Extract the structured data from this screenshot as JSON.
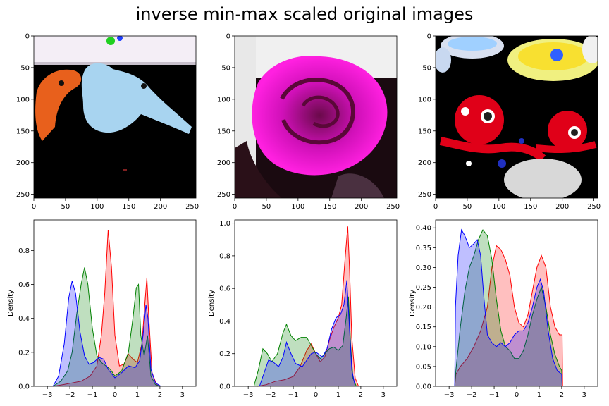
{
  "figure": {
    "title": "inverse min-max scaled original images"
  },
  "colors": {
    "red": "#ff0000",
    "green": "#008000",
    "blue": "#0000ff"
  },
  "chart_data": [
    {
      "type": "image",
      "title": "",
      "description_icon": "plush-toy-photo-icon",
      "xlim": [
        0,
        256
      ],
      "ylim": [
        256,
        0
      ],
      "xticks": [
        0,
        50,
        100,
        150,
        200,
        250
      ],
      "yticks": [
        0,
        50,
        100,
        150,
        200,
        250
      ]
    },
    {
      "type": "image",
      "title": "",
      "description_icon": "rose-photo-icon",
      "xlim": [
        0,
        256
      ],
      "ylim": [
        256,
        0
      ],
      "xticks": [
        0,
        50,
        100,
        150,
        200,
        250
      ],
      "yticks": [
        0,
        50,
        100,
        150,
        200,
        250
      ]
    },
    {
      "type": "image",
      "title": "",
      "description_icon": "octopus-toys-photo-icon",
      "xlim": [
        0,
        256
      ],
      "ylim": [
        256,
        0
      ],
      "xticks": [
        0,
        50,
        100,
        150,
        200,
        250
      ],
      "yticks": [
        0,
        50,
        100,
        150,
        200,
        250
      ]
    },
    {
      "type": "area",
      "ylabel": "Density",
      "xlim": [
        -3.6,
        3.6
      ],
      "ylim": [
        0,
        0.98
      ],
      "xticks": [
        -3,
        -2,
        -1,
        0,
        1,
        2,
        3
      ],
      "yticks": [
        0.0,
        0.2,
        0.4,
        0.6,
        0.8
      ],
      "series": [
        {
          "color": "red",
          "points": [
            [
              -2.75,
              0
            ],
            [
              -2.3,
              0.01
            ],
            [
              -1.9,
              0.02
            ],
            [
              -1.5,
              0.03
            ],
            [
              -1.1,
              0.06
            ],
            [
              -0.8,
              0.12
            ],
            [
              -0.6,
              0.3
            ],
            [
              -0.45,
              0.55
            ],
            [
              -0.3,
              0.92
            ],
            [
              -0.15,
              0.7
            ],
            [
              0.0,
              0.3
            ],
            [
              0.2,
              0.12
            ],
            [
              0.4,
              0.13
            ],
            [
              0.6,
              0.19
            ],
            [
              0.8,
              0.16
            ],
            [
              1.0,
              0.14
            ],
            [
              1.2,
              0.25
            ],
            [
              1.35,
              0.52
            ],
            [
              1.42,
              0.64
            ],
            [
              1.5,
              0.42
            ],
            [
              1.65,
              0.08
            ],
            [
              1.85,
              0.01
            ],
            [
              2.0,
              0
            ]
          ]
        },
        {
          "color": "green",
          "points": [
            [
              -2.75,
              0
            ],
            [
              -2.4,
              0.03
            ],
            [
              -2.1,
              0.09
            ],
            [
              -1.9,
              0.2
            ],
            [
              -1.7,
              0.42
            ],
            [
              -1.5,
              0.6
            ],
            [
              -1.35,
              0.7
            ],
            [
              -1.2,
              0.6
            ],
            [
              -1.0,
              0.34
            ],
            [
              -0.8,
              0.18
            ],
            [
              -0.6,
              0.14
            ],
            [
              -0.4,
              0.12
            ],
            [
              -0.2,
              0.1
            ],
            [
              0.0,
              0.06
            ],
            [
              0.3,
              0.09
            ],
            [
              0.6,
              0.2
            ],
            [
              0.8,
              0.4
            ],
            [
              0.95,
              0.58
            ],
            [
              1.05,
              0.6
            ],
            [
              1.15,
              0.3
            ],
            [
              1.3,
              0.18
            ],
            [
              1.45,
              0.3
            ],
            [
              1.6,
              0.06
            ],
            [
              1.8,
              0.01
            ],
            [
              2.0,
              0
            ]
          ]
        },
        {
          "color": "blue",
          "points": [
            [
              -2.75,
              0
            ],
            [
              -2.5,
              0.06
            ],
            [
              -2.25,
              0.25
            ],
            [
              -2.05,
              0.52
            ],
            [
              -1.9,
              0.62
            ],
            [
              -1.75,
              0.55
            ],
            [
              -1.55,
              0.32
            ],
            [
              -1.35,
              0.18
            ],
            [
              -1.15,
              0.13
            ],
            [
              -0.95,
              0.14
            ],
            [
              -0.7,
              0.17
            ],
            [
              -0.5,
              0.16
            ],
            [
              -0.3,
              0.1
            ],
            [
              0.0,
              0.05
            ],
            [
              0.3,
              0.08
            ],
            [
              0.6,
              0.12
            ],
            [
              0.9,
              0.11
            ],
            [
              1.1,
              0.15
            ],
            [
              1.25,
              0.3
            ],
            [
              1.38,
              0.48
            ],
            [
              1.47,
              0.4
            ],
            [
              1.6,
              0.1
            ],
            [
              1.8,
              0.02
            ],
            [
              2.05,
              0
            ]
          ]
        }
      ]
    },
    {
      "type": "area",
      "ylabel": "Density",
      "xlim": [
        -3.6,
        3.6
      ],
      "ylim": [
        0,
        1.02
      ],
      "xticks": [
        -3,
        -2,
        -1,
        0,
        1,
        2,
        3
      ],
      "yticks": [
        0.0,
        0.2,
        0.4,
        0.6,
        0.8,
        1.0
      ],
      "series": [
        {
          "color": "red",
          "points": [
            [
              -2.6,
              0
            ],
            [
              -2.2,
              0.01
            ],
            [
              -1.8,
              0.03
            ],
            [
              -1.4,
              0.04
            ],
            [
              -1.0,
              0.06
            ],
            [
              -0.7,
              0.12
            ],
            [
              -0.4,
              0.22
            ],
            [
              -0.2,
              0.26
            ],
            [
              0.0,
              0.2
            ],
            [
              0.2,
              0.15
            ],
            [
              0.4,
              0.18
            ],
            [
              0.6,
              0.28
            ],
            [
              0.8,
              0.36
            ],
            [
              1.0,
              0.42
            ],
            [
              1.15,
              0.5
            ],
            [
              1.3,
              0.78
            ],
            [
              1.42,
              0.98
            ],
            [
              1.5,
              0.72
            ],
            [
              1.6,
              0.3
            ],
            [
              1.75,
              0.05
            ],
            [
              1.9,
              0
            ]
          ]
        },
        {
          "color": "green",
          "points": [
            [
              -2.75,
              0
            ],
            [
              -2.55,
              0.1
            ],
            [
              -2.35,
              0.23
            ],
            [
              -2.15,
              0.2
            ],
            [
              -1.95,
              0.15
            ],
            [
              -1.7,
              0.2
            ],
            [
              -1.45,
              0.33
            ],
            [
              -1.3,
              0.38
            ],
            [
              -1.1,
              0.31
            ],
            [
              -0.9,
              0.28
            ],
            [
              -0.65,
              0.3
            ],
            [
              -0.4,
              0.3
            ],
            [
              -0.2,
              0.25
            ],
            [
              0.0,
              0.2
            ],
            [
              0.2,
              0.17
            ],
            [
              0.4,
              0.2
            ],
            [
              0.6,
              0.23
            ],
            [
              0.8,
              0.24
            ],
            [
              1.0,
              0.22
            ],
            [
              1.2,
              0.25
            ],
            [
              1.35,
              0.42
            ],
            [
              1.45,
              0.55
            ],
            [
              1.55,
              0.25
            ],
            [
              1.65,
              0.05
            ],
            [
              1.8,
              0
            ]
          ]
        },
        {
          "color": "blue",
          "points": [
            [
              -2.5,
              0
            ],
            [
              -2.3,
              0.08
            ],
            [
              -2.1,
              0.16
            ],
            [
              -1.9,
              0.15
            ],
            [
              -1.65,
              0.12
            ],
            [
              -1.45,
              0.18
            ],
            [
              -1.3,
              0.27
            ],
            [
              -1.1,
              0.2
            ],
            [
              -0.9,
              0.14
            ],
            [
              -0.6,
              0.12
            ],
            [
              -0.4,
              0.16
            ],
            [
              -0.2,
              0.2
            ],
            [
              0.0,
              0.21
            ],
            [
              0.3,
              0.18
            ],
            [
              0.5,
              0.23
            ],
            [
              0.7,
              0.35
            ],
            [
              0.9,
              0.42
            ],
            [
              1.1,
              0.44
            ],
            [
              1.25,
              0.5
            ],
            [
              1.38,
              0.65
            ],
            [
              1.48,
              0.4
            ],
            [
              1.6,
              0.1
            ],
            [
              1.75,
              0
            ]
          ]
        }
      ]
    },
    {
      "type": "area",
      "ylabel": "Density",
      "xlim": [
        -3.6,
        3.6
      ],
      "ylim": [
        0,
        0.42
      ],
      "xticks": [
        -3,
        -2,
        -1,
        0,
        1,
        2,
        3
      ],
      "yticks": [
        0.0,
        0.05,
        0.1,
        0.15,
        0.2,
        0.25,
        0.3,
        0.35,
        0.4
      ],
      "series": [
        {
          "color": "red",
          "points": [
            [
              -2.75,
              0
            ],
            [
              -2.7,
              0.03
            ],
            [
              -2.5,
              0.05
            ],
            [
              -2.2,
              0.07
            ],
            [
              -1.9,
              0.1
            ],
            [
              -1.6,
              0.14
            ],
            [
              -1.3,
              0.2
            ],
            [
              -1.1,
              0.3
            ],
            [
              -0.9,
              0.355
            ],
            [
              -0.7,
              0.345
            ],
            [
              -0.5,
              0.32
            ],
            [
              -0.3,
              0.28
            ],
            [
              -0.1,
              0.2
            ],
            [
              0.1,
              0.16
            ],
            [
              0.3,
              0.15
            ],
            [
              0.5,
              0.18
            ],
            [
              0.7,
              0.24
            ],
            [
              0.9,
              0.3
            ],
            [
              1.1,
              0.33
            ],
            [
              1.3,
              0.3
            ],
            [
              1.5,
              0.2
            ],
            [
              1.7,
              0.15
            ],
            [
              1.9,
              0.13
            ],
            [
              2.02,
              0.13
            ],
            [
              2.04,
              0
            ]
          ]
        },
        {
          "color": "green",
          "points": [
            [
              -2.75,
              0
            ],
            [
              -2.7,
              0.04
            ],
            [
              -2.5,
              0.15
            ],
            [
              -2.3,
              0.24
            ],
            [
              -2.1,
              0.3
            ],
            [
              -1.9,
              0.33
            ],
            [
              -1.7,
              0.37
            ],
            [
              -1.5,
              0.395
            ],
            [
              -1.3,
              0.38
            ],
            [
              -1.1,
              0.32
            ],
            [
              -0.9,
              0.22
            ],
            [
              -0.7,
              0.14
            ],
            [
              -0.5,
              0.1
            ],
            [
              -0.3,
              0.09
            ],
            [
              -0.1,
              0.07
            ],
            [
              0.1,
              0.07
            ],
            [
              0.3,
              0.09
            ],
            [
              0.5,
              0.13
            ],
            [
              0.7,
              0.18
            ],
            [
              0.9,
              0.22
            ],
            [
              1.1,
              0.25
            ],
            [
              1.3,
              0.2
            ],
            [
              1.5,
              0.13
            ],
            [
              1.7,
              0.08
            ],
            [
              1.9,
              0.05
            ],
            [
              2.0,
              0.04
            ],
            [
              2.02,
              0
            ]
          ]
        },
        {
          "color": "blue",
          "points": [
            [
              -2.75,
              0
            ],
            [
              -2.72,
              0.2
            ],
            [
              -2.6,
              0.33
            ],
            [
              -2.45,
              0.395
            ],
            [
              -2.3,
              0.38
            ],
            [
              -2.1,
              0.35
            ],
            [
              -1.9,
              0.36
            ],
            [
              -1.75,
              0.37
            ],
            [
              -1.6,
              0.33
            ],
            [
              -1.45,
              0.22
            ],
            [
              -1.3,
              0.13
            ],
            [
              -1.1,
              0.11
            ],
            [
              -0.9,
              0.1
            ],
            [
              -0.7,
              0.11
            ],
            [
              -0.5,
              0.1
            ],
            [
              -0.3,
              0.11
            ],
            [
              -0.1,
              0.13
            ],
            [
              0.1,
              0.14
            ],
            [
              0.3,
              0.14
            ],
            [
              0.5,
              0.16
            ],
            [
              0.7,
              0.2
            ],
            [
              0.9,
              0.25
            ],
            [
              1.05,
              0.27
            ],
            [
              1.2,
              0.24
            ],
            [
              1.4,
              0.14
            ],
            [
              1.6,
              0.07
            ],
            [
              1.8,
              0.04
            ],
            [
              2.0,
              0.03
            ],
            [
              2.02,
              0
            ]
          ]
        }
      ]
    }
  ]
}
